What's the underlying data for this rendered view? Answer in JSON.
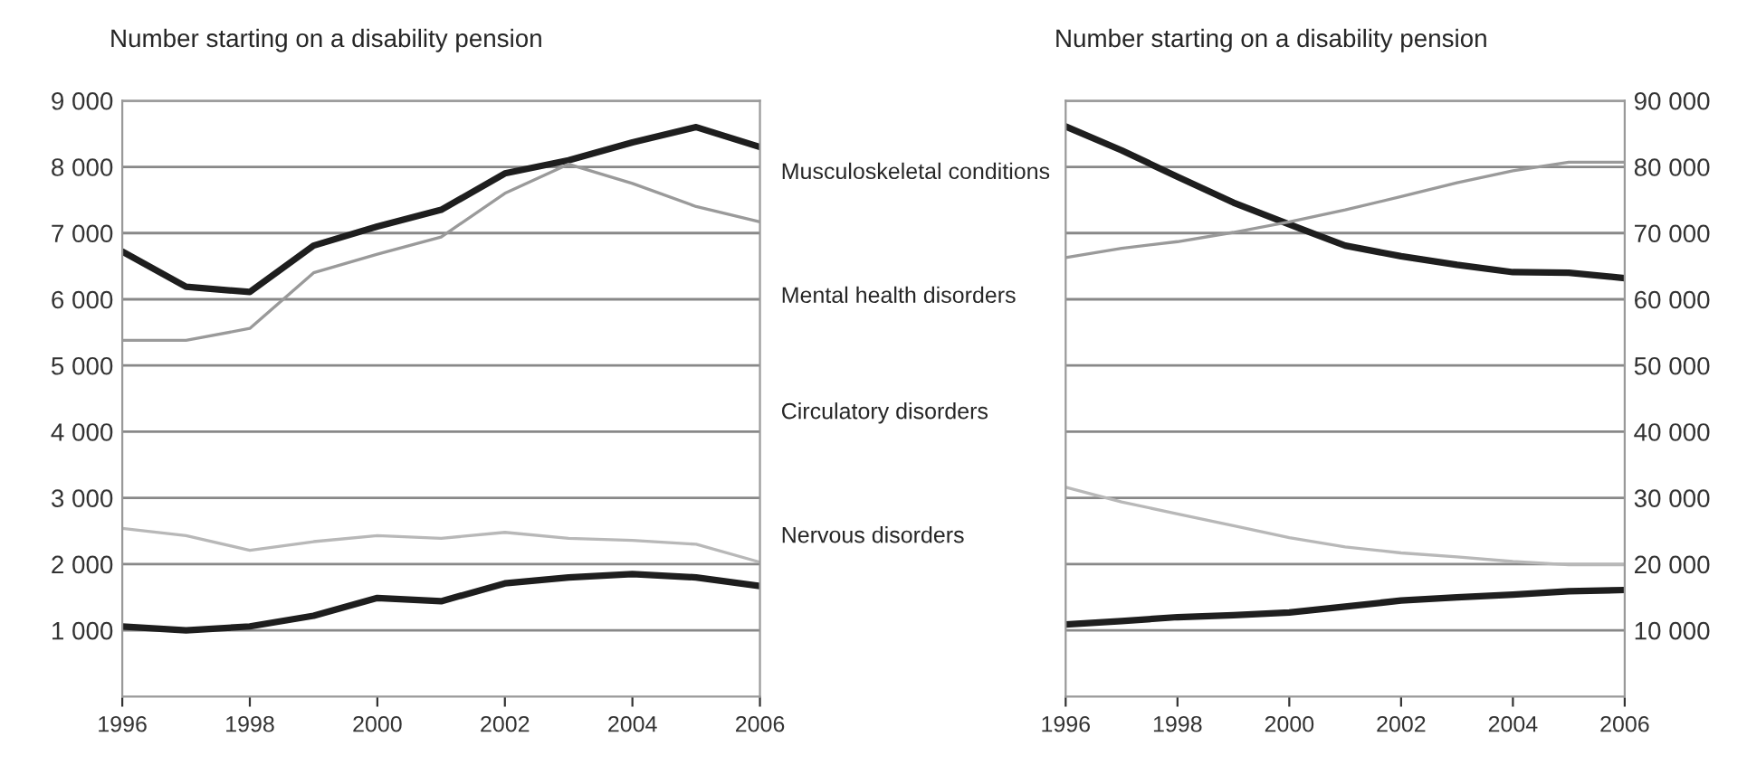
{
  "chart_data": [
    {
      "type": "line",
      "title": "Number starting on a disability pension",
      "x": [
        1996,
        1997,
        1998,
        1999,
        2000,
        2001,
        2002,
        2003,
        2004,
        2005,
        2006
      ],
      "series": [
        {
          "name": "Musculoskeletal conditions",
          "color": "#1e1e1e",
          "values": [
            6720,
            6190,
            6110,
            6810,
            7100,
            7350,
            7900,
            8100,
            8370,
            8600,
            8300
          ]
        },
        {
          "name": "Mental health disorders",
          "color": "#9a9a9a",
          "values": [
            5380,
            5380,
            5560,
            6400,
            6680,
            6940,
            7600,
            8040,
            7750,
            7400,
            7170
          ]
        },
        {
          "name": "Circulatory disorders",
          "color": "#b8b8b8",
          "values": [
            2540,
            2430,
            2210,
            2340,
            2430,
            2390,
            2480,
            2390,
            2360,
            2300,
            2030
          ]
        },
        {
          "name": "Nervous disorders",
          "color": "#1e1e1e",
          "values": [
            1060,
            1000,
            1060,
            1220,
            1490,
            1440,
            1710,
            1800,
            1850,
            1800,
            1670
          ]
        }
      ],
      "xlim": [
        1996,
        2006
      ],
      "xticks": [
        1996,
        1998,
        2000,
        2002,
        2004,
        2006
      ],
      "ylim": [
        0,
        9000
      ],
      "yticks": [
        {
          "value": 1000,
          "label": "1 000"
        },
        {
          "value": 2000,
          "label": "2 000"
        },
        {
          "value": 3000,
          "label": "3 000"
        },
        {
          "value": 4000,
          "label": "4 000"
        },
        {
          "value": 5000,
          "label": "5 000"
        },
        {
          "value": 6000,
          "label": "6 000"
        },
        {
          "value": 7000,
          "label": "7 000"
        },
        {
          "value": 8000,
          "label": "8 000"
        },
        {
          "value": 9000,
          "label": "9 000"
        }
      ],
      "grid": "y",
      "legend": false
    },
    {
      "type": "line",
      "title": "Number starting on a disability pension",
      "x": [
        1996,
        1997,
        1998,
        1999,
        2000,
        2001,
        2002,
        2003,
        2004,
        2005,
        2006
      ],
      "series": [
        {
          "color": "#1e1e1e",
          "values": [
            86100,
            82500,
            78500,
            74600,
            71300,
            68100,
            66500,
            65200,
            64100,
            64000,
            63200
          ]
        },
        {
          "color": "#9a9a9a",
          "values": [
            66300,
            67700,
            68700,
            70100,
            71700,
            73500,
            75500,
            77600,
            79400,
            80700,
            80700
          ]
        },
        {
          "color": "#b8b8b8",
          "values": [
            31600,
            29400,
            27600,
            25800,
            24000,
            22600,
            21700,
            21100,
            20400,
            19900,
            19900
          ]
        },
        {
          "color": "#1e1e1e",
          "values": [
            10900,
            11400,
            12000,
            12300,
            12700,
            13600,
            14500,
            15000,
            15400,
            15900,
            16100
          ]
        }
      ],
      "xlim": [
        1996,
        2006
      ],
      "xticks": [
        1996,
        1998,
        2000,
        2002,
        2004,
        2006
      ],
      "ylim": [
        0,
        90000
      ],
      "yticks": [
        {
          "value": 10000,
          "label": "10 000"
        },
        {
          "value": 20000,
          "label": "20 000"
        },
        {
          "value": 30000,
          "label": "30 000"
        },
        {
          "value": 40000,
          "label": "40 000"
        },
        {
          "value": 50000,
          "label": "50 000"
        },
        {
          "value": 60000,
          "label": "60 000"
        },
        {
          "value": 70000,
          "label": "70 000"
        },
        {
          "value": 80000,
          "label": "80 000"
        },
        {
          "value": 90000,
          "label": "90 000"
        }
      ],
      "grid": "y",
      "legend": false
    }
  ]
}
